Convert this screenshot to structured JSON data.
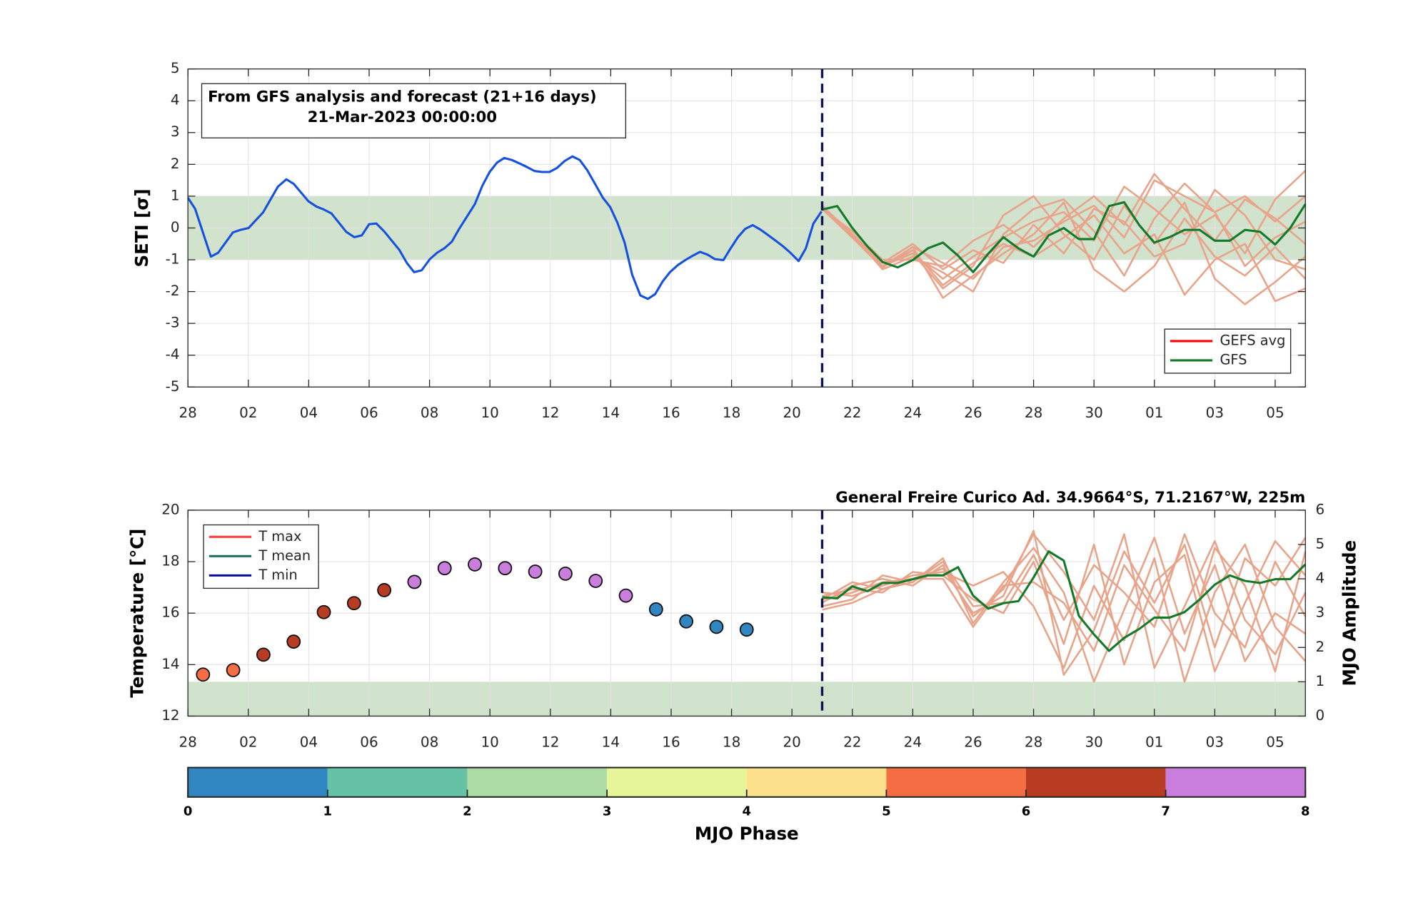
{
  "chart_data": [
    {
      "type": "line",
      "textbox": [
        "From GFS analysis and forecast (21+16 days)",
        "21-Mar-2023 00:00:00"
      ],
      "ylabel": "SETI [σ]",
      "xlim": [
        0,
        37
      ],
      "xticks": [
        {
          "value": 0,
          "label": "28"
        },
        {
          "value": 2,
          "label": "02"
        },
        {
          "value": 4,
          "label": "04"
        },
        {
          "value": 6,
          "label": "06"
        },
        {
          "value": 8,
          "label": "08"
        },
        10,
        12,
        14,
        16,
        18,
        20,
        22,
        24,
        26,
        28,
        30,
        {
          "value": 32,
          "label": "01"
        },
        {
          "value": 34,
          "label": "03"
        },
        {
          "value": 36,
          "label": "05"
        }
      ],
      "ylim": [
        -5,
        5
      ],
      "yticks": [
        -5,
        -4,
        -3,
        -2,
        -1,
        0,
        1,
        2,
        3,
        4,
        5
      ],
      "grid": true,
      "band": {
        "axis": "y",
        "values": [
          -1,
          1
        ],
        "color": "#d1e2cd"
      },
      "forecast_start": 21,
      "members": {
        "color": "#e8a48a",
        "x": [
          21,
          22,
          23,
          24,
          25,
          26,
          27,
          28,
          29,
          30,
          31,
          32,
          33,
          34,
          35,
          36,
          37
        ],
        "values": [
          [
            0.65,
            -0.2,
            -1.1,
            -0.8,
            -1.6,
            -0.9,
            -0.3,
            0.2,
            0.5,
            -0.4,
            1.3,
            0.6,
            -0.2,
            0.4,
            -0.8,
            0.9,
            1.8
          ],
          [
            0.7,
            -0.3,
            -1.2,
            -0.6,
            -2.2,
            -1.5,
            -0.8,
            -0.2,
            0.8,
            -1.3,
            -2.0,
            -1.2,
            0.3,
            -0.9,
            -1.5,
            -0.6,
            -1.6
          ],
          [
            0.6,
            -0.1,
            -1.0,
            -1.0,
            -1.2,
            -0.4,
            0.1,
            -0.6,
            0.3,
            1.0,
            0.1,
            1.7,
            0.6,
            -0.4,
            0.9,
            0.3,
            -0.5
          ],
          [
            0.65,
            -0.25,
            -1.2,
            -0.7,
            -1.8,
            -1.1,
            -0.5,
            -0.9,
            -0.3,
            0.4,
            -0.8,
            -0.2,
            -2.1,
            -1.0,
            -0.5,
            -2.3,
            -1.9
          ],
          [
            0.7,
            -0.2,
            -1.3,
            -0.9,
            -1.4,
            -2.0,
            -0.2,
            0.6,
            0.9,
            -0.1,
            -1.5,
            0.3,
            1.4,
            0.5,
            -1.2,
            -0.3,
            0.2
          ],
          [
            0.6,
            -0.3,
            -1.1,
            -0.5,
            -1.3,
            -0.7,
            -1.1,
            0.1,
            -0.8,
            0.6,
            0.2,
            -0.9,
            -0.5,
            1.2,
            0.4,
            -1.0,
            -1.3
          ],
          [
            0.65,
            -0.2,
            -1.2,
            -0.8,
            -1.9,
            -1.2,
            0.4,
            1.0,
            -0.2,
            -1.0,
            0.7,
            -0.5,
            0.8,
            -1.6,
            -2.4,
            -1.7,
            -0.9
          ],
          [
            0.7,
            -0.3,
            -1.25,
            -0.6,
            -1.1,
            -1.6,
            -0.6,
            -0.4,
            0.2,
            0.7,
            -0.3,
            1.5,
            1.0,
            0.5,
            1.0,
            0.2,
            1.0
          ]
        ]
      },
      "series": [
        {
          "color": "#1550e0",
          "x": [
            0,
            0.24,
            0.76,
            1.0,
            1.49,
            1.74,
            2.01,
            2.49,
            2.98,
            3.26,
            3.5,
            3.99,
            4.26,
            4.5,
            4.75,
            5.24,
            5.51,
            5.76,
            6.0,
            6.24,
            6.51,
            7.0,
            7.25,
            7.49,
            7.74,
            8.01,
            8.25,
            8.49,
            8.74,
            8.98,
            9.5,
            9.75,
            9.99,
            10.23,
            10.47,
            10.72,
            11.0,
            11.24,
            11.48,
            11.73,
            11.97,
            12.21,
            12.48,
            12.73,
            12.97,
            13.22,
            13.46,
            13.74,
            13.98,
            14.22,
            14.46,
            14.71,
            14.98,
            15.23,
            15.47,
            15.72,
            15.96,
            16.23,
            16.47,
            16.72,
            16.96,
            17.21,
            17.45,
            17.73,
            17.97,
            18.21,
            18.45,
            18.7,
            18.97,
            19.22,
            19.46,
            19.71,
            19.95,
            20.22,
            20.46,
            20.71,
            20.98
          ],
          "values": [
            0.95,
            0.6,
            -0.9,
            -0.78,
            -0.14,
            -0.06,
            0,
            0.49,
            1.3,
            1.53,
            1.39,
            0.84,
            0.67,
            0.58,
            0.46,
            -0.12,
            -0.29,
            -0.23,
            0.12,
            0.14,
            -0.12,
            -0.69,
            -1.1,
            -1.39,
            -1.33,
            -0.98,
            -0.78,
            -0.64,
            -0.43,
            -0.03,
            0.75,
            1.33,
            1.76,
            2.05,
            2.2,
            2.14,
            2.02,
            1.91,
            1.79,
            1.76,
            1.76,
            1.88,
            2.11,
            2.25,
            2.14,
            1.82,
            1.42,
            0.95,
            0.66,
            0.17,
            -0.46,
            -1.47,
            -2.12,
            -2.23,
            -2.08,
            -1.68,
            -1.39,
            -1.16,
            -1.01,
            -0.87,
            -0.75,
            -0.84,
            -0.98,
            -1.01,
            -0.64,
            -0.29,
            -0.03,
            0.09,
            -0.06,
            -0.23,
            -0.4,
            -0.58,
            -0.78,
            -1.04,
            -0.64,
            0.14,
            0.52
          ]
        },
        {
          "color": "#137a2a",
          "x": [
            21,
            21.5,
            22,
            22.5,
            23,
            23.5,
            24,
            24.5,
            25,
            25.5,
            26,
            26.5,
            27,
            27.5,
            28,
            28.5,
            29,
            29.5,
            30,
            30.5,
            31,
            31.5,
            32,
            32.5,
            33,
            33.5,
            34,
            34.5,
            35,
            35.5,
            36,
            36.5,
            37
          ],
          "values": [
            0.58,
            0.69,
            0,
            -0.58,
            -1.07,
            -1.24,
            -1.01,
            -0.64,
            -0.46,
            -0.87,
            -1.39,
            -0.81,
            -0.29,
            -0.64,
            -0.9,
            -0.23,
            0,
            -0.35,
            -0.35,
            0.69,
            0.81,
            0.09,
            -0.46,
            -0.29,
            -0.06,
            -0.06,
            -0.4,
            -0.4,
            -0.06,
            -0.12,
            -0.52,
            0,
            0.75
          ]
        }
      ],
      "legend": [
        {
          "name": "GEFS avg",
          "color": "#ff0000"
        },
        {
          "name": "GFS",
          "color": "#137a2a"
        }
      ]
    },
    {
      "type": "line",
      "title": "General Freire Curico Ad. 34.9664°S, 71.2167°W, 225m",
      "ylabel": "Temperature [°C]",
      "y2label": "MJO Amplitude",
      "xlim": [
        0,
        37
      ],
      "xticks": [
        {
          "value": 0,
          "label": "28"
        },
        {
          "value": 2,
          "label": "02"
        },
        {
          "value": 4,
          "label": "04"
        },
        {
          "value": 6,
          "label": "06"
        },
        {
          "value": 8,
          "label": "08"
        },
        10,
        12,
        14,
        16,
        18,
        20,
        22,
        24,
        26,
        28,
        30,
        {
          "value": 32,
          "label": "01"
        },
        {
          "value": 34,
          "label": "03"
        },
        {
          "value": 36,
          "label": "05"
        }
      ],
      "ylim": [
        12,
        20
      ],
      "yticks": [
        12,
        14,
        16,
        18,
        20
      ],
      "y2lim": [
        0,
        6
      ],
      "y2ticks": [
        0,
        1,
        2,
        3,
        4,
        5,
        6
      ],
      "grid": true,
      "band": {
        "axis": "y2",
        "values": [
          0,
          1
        ],
        "color": "#d1e2cd"
      },
      "forecast_start": 21,
      "members": {
        "color": "#e8a48a",
        "axis": "y2",
        "x": [
          21,
          22,
          23,
          24,
          25,
          26,
          27,
          28,
          29,
          30,
          31,
          32,
          33,
          34,
          35,
          36,
          37
        ],
        "values": [
          [
            3.4,
            3.6,
            3.9,
            4.0,
            4.3,
            3.0,
            3.5,
            5.4,
            1.2,
            2.5,
            4.8,
            3.3,
            5.0,
            2.0,
            4.6,
            3.8,
            5.2
          ],
          [
            3.1,
            3.3,
            3.7,
            3.9,
            4.6,
            2.7,
            3.9,
            4.9,
            3.6,
            1.0,
            3.1,
            5.2,
            2.4,
            4.4,
            1.6,
            3.0,
            2.4
          ],
          [
            3.5,
            3.7,
            3.6,
            4.2,
            4.1,
            3.4,
            3.0,
            4.5,
            2.1,
            5.0,
            1.5,
            3.9,
            4.7,
            1.3,
            3.3,
            5.1,
            4.1
          ],
          [
            3.3,
            3.8,
            4.0,
            3.8,
            4.4,
            2.9,
            3.7,
            5.3,
            4.2,
            2.8,
            5.3,
            1.4,
            3.2,
            5.1,
            2.8,
            1.8,
            3.6
          ],
          [
            3.6,
            3.5,
            3.8,
            4.1,
            4.2,
            3.8,
            4.2,
            3.2,
            1.4,
            3.8,
            2.2,
            4.6,
            1.0,
            3.6,
            5.0,
            2.6,
            1.6
          ],
          [
            3.2,
            3.4,
            4.1,
            3.9,
            4.5,
            3.2,
            3.3,
            4.7,
            2.8,
            4.4,
            3.6,
            2.6,
            5.3,
            3.0,
            2.0,
            4.5,
            2.9
          ],
          [
            3.4,
            3.9,
            3.7,
            4.0,
            4.0,
            2.6,
            3.8,
            3.9,
            3.3,
            1.9,
            4.4,
            3.1,
            1.9,
            4.9,
            3.8,
            1.3,
            4.8
          ]
        ]
      },
      "series": [
        {
          "color": "#137a2a",
          "axis": "y2",
          "x": [
            21,
            21.5,
            22,
            22.5,
            23,
            23.5,
            24,
            24.5,
            25,
            25.5,
            26,
            26.5,
            27,
            27.5,
            28,
            28.5,
            29,
            29.5,
            30,
            30.5,
            31,
            31.5,
            32,
            32.5,
            33,
            33.5,
            34,
            34.5,
            35,
            35.5,
            36,
            36.5,
            37
          ],
          "values": [
            3.46,
            3.43,
            3.78,
            3.64,
            3.88,
            3.88,
            3.99,
            4.1,
            4.1,
            4.34,
            3.51,
            3.13,
            3.29,
            3.35,
            4.04,
            4.8,
            4.53,
            2.92,
            2.38,
            1.9,
            2.28,
            2.54,
            2.87,
            2.87,
            3.03,
            3.4,
            3.83,
            4.1,
            3.94,
            3.88,
            3.99,
            3.99,
            4.42
          ]
        }
      ],
      "mjo": {
        "axis": "y2",
        "x": [
          0.5,
          1.5,
          2.5,
          3.5,
          4.5,
          5.5,
          6.5,
          7.5,
          8.5,
          9.5,
          10.5,
          11.5,
          12.5,
          13.5,
          14.5,
          15.5,
          16.5,
          17.5,
          18.5
        ],
        "amplitude": [
          1.21,
          1.34,
          1.79,
          2.17,
          3.03,
          3.29,
          3.67,
          3.91,
          4.31,
          4.42,
          4.31,
          4.21,
          4.15,
          3.94,
          3.51,
          3.11,
          2.76,
          2.6,
          2.52
        ],
        "phase": [
          5.5,
          5.5,
          6.5,
          6.5,
          6.5,
          6.5,
          6.5,
          7.5,
          7.5,
          7.5,
          7.5,
          7.5,
          7.5,
          7.5,
          7.5,
          0.5,
          0.5,
          0.5,
          0.5
        ]
      },
      "legend": [
        {
          "name": "T max",
          "color": "#ff4040"
        },
        {
          "name": "T mean",
          "color": "#1f6f66"
        },
        {
          "name": "T min",
          "color": "#0a0aa0"
        }
      ],
      "colorbar": {
        "label": "MJO Phase",
        "ticks": [
          0,
          1,
          2,
          3,
          4,
          5,
          6,
          7,
          8
        ],
        "colors": [
          "#2f86c0",
          "#66c2a4",
          "#abdca3",
          "#e5f597",
          "#fde08b",
          "#f46d43",
          "#b83c21",
          "#c97ddd"
        ]
      }
    }
  ]
}
